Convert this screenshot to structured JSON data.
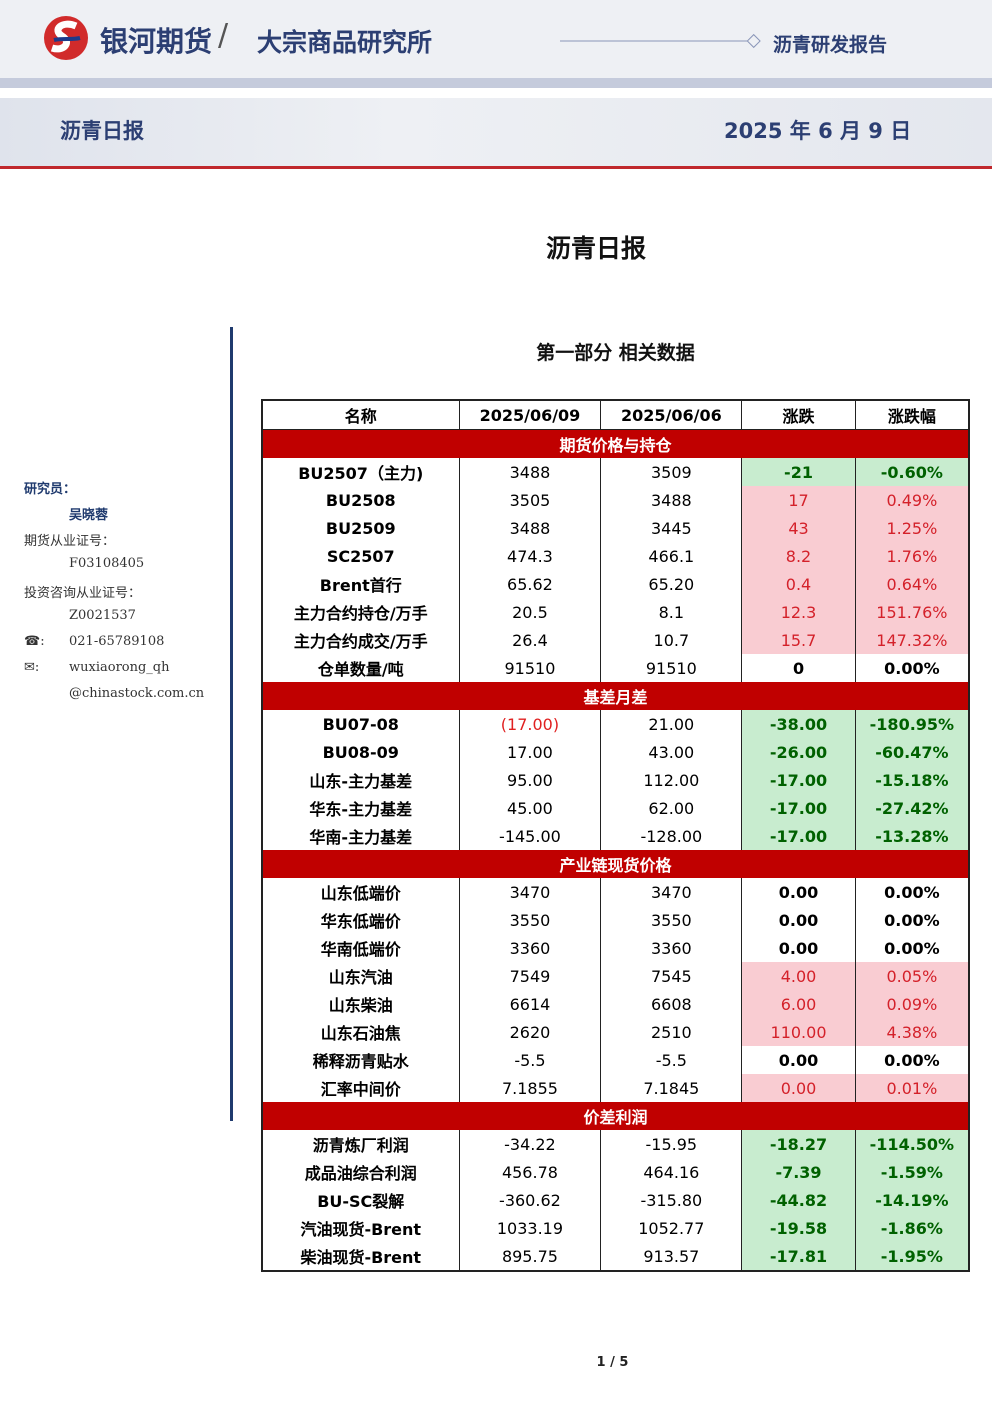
{
  "header": {
    "company": "银河期货",
    "separator": "/",
    "division": "大宗商品研究所",
    "report_type": "沥青研发报告",
    "banner_title": "沥青日报",
    "date": "2025 年 6 月 9 日"
  },
  "title": "沥青日报",
  "sidebar": {
    "researcher_label": "研究员：",
    "researcher": "吴晓蓉",
    "license_label": "期货从业证号：",
    "license": "F03108405",
    "consult_label": "投资咨询从业证号：",
    "consult": "Z0021537",
    "phone_icon": "☎:",
    "phone": "021-65789108",
    "email_icon": "✉:",
    "email_1": "wuxiaorong_qh",
    "email_2": "@chinastock.com.cn"
  },
  "section_title": "第一部分 相关数据",
  "table": {
    "columns": [
      "名称",
      "2025/06/09",
      "2025/06/06",
      "涨跌",
      "涨跌幅"
    ],
    "groups": [
      {
        "title": "期货价格与持仓",
        "rows": [
          {
            "cells": [
              "BU2507（主力)",
              "3488",
              "3509",
              "-21",
              "-0.60%"
            ],
            "tone": "down"
          },
          {
            "cells": [
              "BU2508",
              "3505",
              "3488",
              "17",
              "0.49%"
            ],
            "tone": "up"
          },
          {
            "cells": [
              "BU2509",
              "3488",
              "3445",
              "43",
              "1.25%"
            ],
            "tone": "up"
          },
          {
            "cells": [
              "SC2507",
              "474.3",
              "466.1",
              "8.2",
              "1.76%"
            ],
            "tone": "up"
          },
          {
            "cells": [
              "Brent首行",
              "65.62",
              "65.20",
              "0.4",
              "0.64%"
            ],
            "tone": "up"
          },
          {
            "cells": [
              "主力合约持仓/万手",
              "20.5",
              "8.1",
              "12.3",
              "151.76%"
            ],
            "tone": "up"
          },
          {
            "cells": [
              "主力合约成交/万手",
              "26.4",
              "10.7",
              "15.7",
              "147.32%"
            ],
            "tone": "up"
          },
          {
            "cells": [
              "仓单数量/吨",
              "91510",
              "91510",
              "0",
              "0.00%"
            ],
            "tone": "flat"
          }
        ]
      },
      {
        "title": "基差月差",
        "rows": [
          {
            "cells": [
              "BU07-08",
              {
                "text": "(17.00)",
                "color": "#e02020"
              },
              "21.00",
              "-38.00",
              "-180.95%"
            ],
            "tone": "down"
          },
          {
            "cells": [
              "BU08-09",
              "17.00",
              "43.00",
              "-26.00",
              "-60.47%"
            ],
            "tone": "down"
          },
          {
            "cells": [
              "山东-主力基差",
              "95.00",
              "112.00",
              "-17.00",
              "-15.18%"
            ],
            "tone": "down"
          },
          {
            "cells": [
              "华东-主力基差",
              "45.00",
              "62.00",
              "-17.00",
              "-27.42%"
            ],
            "tone": "down"
          },
          {
            "cells": [
              "华南-主力基差",
              "-145.00",
              "-128.00",
              "-17.00",
              "-13.28%"
            ],
            "tone": "down"
          }
        ]
      },
      {
        "title": "产业链现货价格",
        "rows": [
          {
            "cells": [
              "山东低端价",
              "3470",
              "3470",
              "0.00",
              "0.00%"
            ],
            "tone": "flat"
          },
          {
            "cells": [
              "华东低端价",
              "3550",
              "3550",
              "0.00",
              "0.00%"
            ],
            "tone": "flat"
          },
          {
            "cells": [
              "华南低端价",
              "3360",
              "3360",
              "0.00",
              "0.00%"
            ],
            "tone": "flat"
          },
          {
            "cells": [
              "山东汽油",
              "7549",
              "7545",
              "4.00",
              "0.05%"
            ],
            "tone": "up"
          },
          {
            "cells": [
              "山东柴油",
              "6614",
              "6608",
              "6.00",
              "0.09%"
            ],
            "tone": "up"
          },
          {
            "cells": [
              "山东石油焦",
              "2620",
              "2510",
              "110.00",
              "4.38%"
            ],
            "tone": "up"
          },
          {
            "cells": [
              "稀释沥青贴水",
              "-5.5",
              "-5.5",
              "0.00",
              "0.00%"
            ],
            "tone": "flat"
          },
          {
            "cells": [
              "汇率中间价",
              "7.1855",
              "7.1845",
              "0.00",
              "0.01%"
            ],
            "tone": "up"
          }
        ]
      },
      {
        "title": "价差利润",
        "rows": [
          {
            "cells": [
              "沥青炼厂利润",
              "-34.22",
              "-15.95",
              "-18.27",
              "-114.50%"
            ],
            "tone": "down"
          },
          {
            "cells": [
              "成品油综合利润",
              "456.78",
              "464.16",
              "-7.39",
              "-1.59%"
            ],
            "tone": "down"
          },
          {
            "cells": [
              "BU-SC裂解",
              "-360.62",
              "-315.80",
              "-44.82",
              "-14.19%"
            ],
            "tone": "down"
          },
          {
            "cells": [
              "汽油现货-Brent",
              "1033.19",
              "1052.77",
              "-19.58",
              "-1.86%"
            ],
            "tone": "down"
          },
          {
            "cells": [
              "柴油现货-Brent",
              "895.75",
              "913.57",
              "-17.81",
              "-1.95%"
            ],
            "tone": "down"
          }
        ]
      }
    ]
  },
  "footer": {
    "page": "1 / 5"
  }
}
